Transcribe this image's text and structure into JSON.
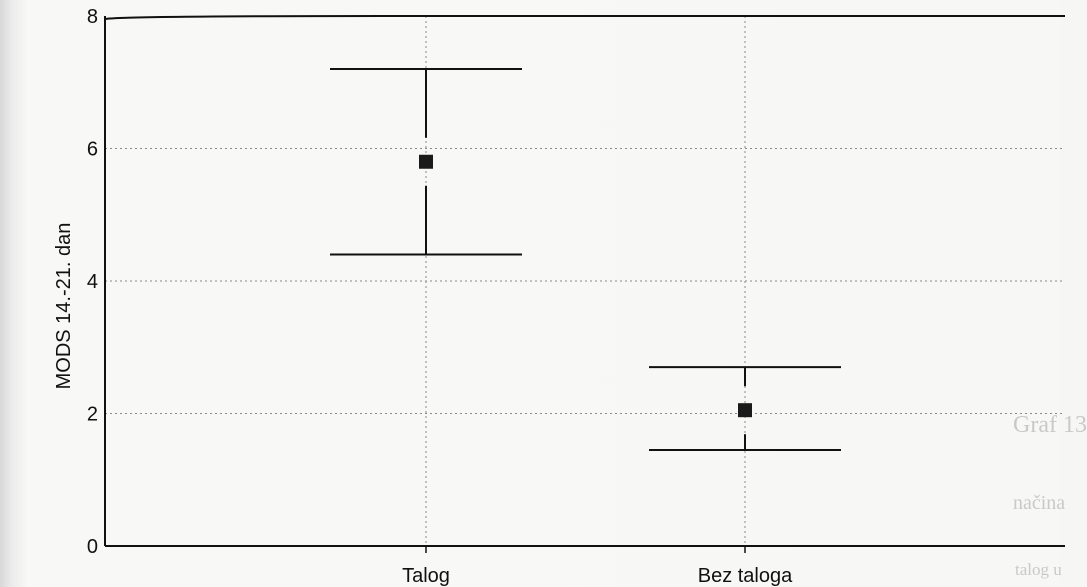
{
  "background_text": [
    "Graf 13",
    "načina",
    "talog u"
  ],
  "chart_data": {
    "type": "scatter",
    "title": "",
    "xlabel": "",
    "ylabel": "MODS 14.-21. dan",
    "ylim": [
      0,
      8
    ],
    "yticks": [
      0,
      2,
      4,
      6,
      8
    ],
    "categories": [
      "Talog",
      "Bez taloga"
    ],
    "series": [
      {
        "values": [
          5.8,
          2.05
        ],
        "error_low": [
          4.4,
          1.45
        ],
        "error_high": [
          7.2,
          2.7
        ]
      }
    ],
    "grid": true,
    "legend": "none",
    "colors": {
      "marker": "#1a1a1a",
      "grid": "#8a8a8a",
      "axis": "#111111"
    }
  }
}
